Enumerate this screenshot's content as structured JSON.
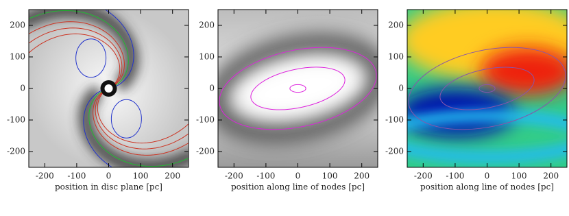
{
  "chart_data": [
    {
      "type": "image",
      "colormap": "gray",
      "contour_colors": [
        "#2233cc",
        "#22bb33",
        "#cc3322"
      ],
      "xlabel": "position in disc plane [pc]",
      "xlim": [
        -250,
        250
      ],
      "ylim": [
        -250,
        250
      ],
      "xticks": [
        -200,
        -100,
        0,
        100,
        200
      ],
      "yticks": [
        -200,
        -100,
        0,
        100,
        200
      ]
    },
    {
      "type": "image",
      "colormap": "gray",
      "contour_colors": [
        "#dd22dd"
      ],
      "xlabel": "position along line of nodes [pc]",
      "xlim": [
        -250,
        250
      ],
      "ylim": [
        -250,
        250
      ],
      "xticks": [
        -200,
        -100,
        0,
        100,
        200
      ],
      "yticks": [
        -200,
        -100,
        0,
        100,
        200
      ]
    },
    {
      "type": "image",
      "colormap": "rainbow",
      "contour_colors": [
        "#8855aa"
      ],
      "xlabel": "position along line of nodes [pc]",
      "xlim": [
        -250,
        250
      ],
      "ylim": [
        -250,
        250
      ],
      "xticks": [
        -200,
        -100,
        0,
        100,
        200
      ],
      "yticks": [
        -200,
        -100,
        0,
        100,
        200
      ]
    }
  ]
}
